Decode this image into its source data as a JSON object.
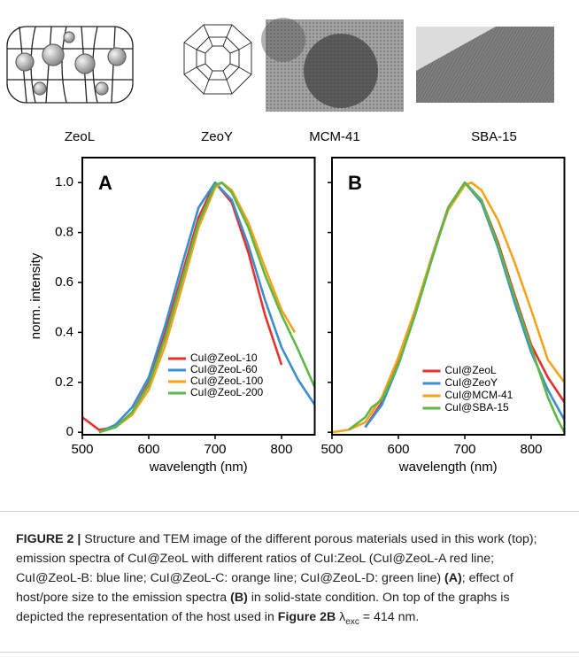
{
  "materials": [
    {
      "label": "ZeoL"
    },
    {
      "label": "ZeoY"
    },
    {
      "label": "MCM-41"
    },
    {
      "label": "SBA-15"
    }
  ],
  "chart_data": [
    {
      "type": "line",
      "panel": "A",
      "x_label": "wavelength (nm)",
      "y_label": "norm. intensity",
      "xlim": [
        500,
        850
      ],
      "ylim": [
        -0.01,
        1.1
      ],
      "xticks": [
        500,
        600,
        700,
        800
      ],
      "yticks": [
        0,
        0.2,
        0.4,
        0.6,
        0.8,
        {
          "value": 1,
          "label": "1.0"
        }
      ],
      "legend": "lower center",
      "series": [
        {
          "name": "CuI@ZeoL-10",
          "color": "#e8312a",
          "x": [
            500,
            525,
            550,
            575,
            600,
            625,
            650,
            675,
            700,
            725,
            750,
            775,
            800
          ],
          "values": [
            0.06,
            0.01,
            0.02,
            0.08,
            0.2,
            0.4,
            0.63,
            0.86,
            1.0,
            0.92,
            0.72,
            0.47,
            0.27
          ]
        },
        {
          "name": "CuI@ZeoL-60",
          "color": "#3b8fd0",
          "x": [
            525,
            550,
            575,
            600,
            625,
            650,
            675,
            700,
            725,
            750,
            775,
            800,
            825,
            850
          ],
          "values": [
            0.0,
            0.03,
            0.1,
            0.22,
            0.43,
            0.67,
            0.9,
            1.0,
            0.93,
            0.75,
            0.53,
            0.34,
            0.21,
            0.11
          ]
        },
        {
          "name": "CuI@ZeoL-100",
          "color": "#f7a21b",
          "x": [
            525,
            550,
            575,
            600,
            625,
            650,
            675,
            700,
            710,
            725,
            750,
            775,
            800,
            820
          ],
          "values": [
            0.0,
            0.02,
            0.07,
            0.17,
            0.35,
            0.58,
            0.82,
            0.98,
            1.0,
            0.97,
            0.84,
            0.66,
            0.49,
            0.4
          ]
        },
        {
          "name": "CuI@ZeoL-200",
          "color": "#5db847",
          "x": [
            525,
            550,
            575,
            600,
            625,
            650,
            675,
            700,
            710,
            725,
            750,
            775,
            800,
            825,
            850
          ],
          "values": [
            0.0,
            0.02,
            0.08,
            0.19,
            0.38,
            0.61,
            0.84,
            0.99,
            1.0,
            0.96,
            0.82,
            0.63,
            0.47,
            0.33,
            0.18
          ]
        }
      ]
    },
    {
      "type": "line",
      "panel": "B",
      "x_label": "wavelength (nm)",
      "xlim": [
        500,
        850
      ],
      "ylim": [
        -0.01,
        1.1
      ],
      "xticks": [
        500,
        600,
        700,
        800
      ],
      "yticks": [
        0,
        0.2,
        0.4,
        0.6,
        0.8,
        1
      ],
      "legend": "lower right",
      "series": [
        {
          "name": "CuI@ZeoL",
          "color": "#e8312a",
          "x": [
            550,
            575,
            600,
            625,
            650,
            675,
            700,
            725,
            750,
            775,
            800,
            825,
            850
          ],
          "values": [
            0.02,
            0.12,
            0.28,
            0.48,
            0.7,
            0.9,
            1.0,
            0.93,
            0.76,
            0.55,
            0.35,
            0.22,
            0.12
          ]
        },
        {
          "name": "CuI@ZeoY",
          "color": "#3b8fd0",
          "x": [
            550,
            575,
            600,
            625,
            650,
            675,
            700,
            725,
            750,
            775,
            800,
            825,
            850
          ],
          "values": [
            0.02,
            0.11,
            0.27,
            0.47,
            0.69,
            0.9,
            1.0,
            0.92,
            0.74,
            0.52,
            0.32,
            0.17,
            0.05
          ]
        },
        {
          "name": "CuI@MCM-41",
          "color": "#f7a21b",
          "x": [
            500,
            525,
            550,
            575,
            600,
            625,
            650,
            675,
            700,
            710,
            725,
            750,
            775,
            800,
            825,
            850
          ],
          "values": [
            0.0,
            0.01,
            0.04,
            0.14,
            0.3,
            0.49,
            0.7,
            0.89,
            0.99,
            1.0,
            0.97,
            0.85,
            0.68,
            0.49,
            0.29,
            0.2
          ]
        },
        {
          "name": "CuI@SBA-15",
          "color": "#5db847",
          "x": [
            525,
            550,
            560,
            575,
            600,
            625,
            650,
            675,
            700,
            725,
            750,
            775,
            800,
            825,
            840,
            850
          ],
          "values": [
            0.01,
            0.06,
            0.1,
            0.13,
            0.27,
            0.47,
            0.69,
            0.9,
            1.0,
            0.93,
            0.75,
            0.54,
            0.34,
            0.14,
            0.05,
            0.0
          ]
        }
      ]
    }
  ],
  "caption": {
    "segments": [
      {
        "text": "FIGURE 2 |",
        "bold": true
      },
      {
        "text": " Structure and TEM image of the different porous materials used in this work (top); emission spectra of CuI@ZeoL with different ratios of CuI:ZeoL (CuI@ZeoL-A red line; CuI@ZeoL-B: blue line; CuI@ZeoL-C: orange line; CuI@ZeoL-D: green line) "
      },
      {
        "text": "(A)",
        "bold": true
      },
      {
        "text": "; effect of host/pore size to the emission spectra "
      },
      {
        "text": "(B)",
        "bold": true
      },
      {
        "text": " in solid-state condition. On top of the graphs is depicted the representation of the host used in "
      },
      {
        "text": "Figure 2B",
        "bold": true
      },
      {
        "text": " λ"
      },
      {
        "text": "exc",
        "sub": true
      },
      {
        "text": " = 414 nm."
      }
    ]
  }
}
